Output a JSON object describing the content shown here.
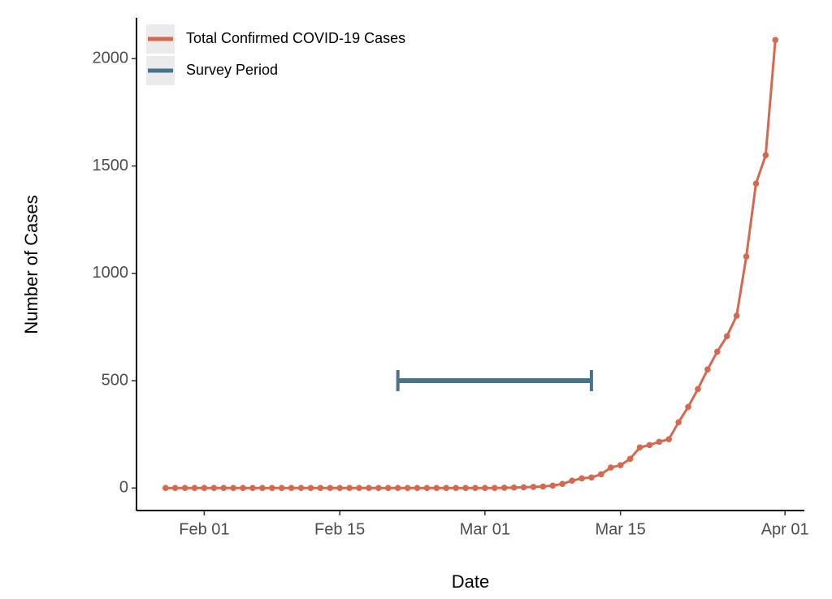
{
  "chart_data": {
    "type": "line",
    "x_label": "Date",
    "y_label": "Number of Cases",
    "xlim": [
      "01-25",
      "04-03"
    ],
    "xticks": [
      {
        "value": "02-01",
        "label": "Feb 01"
      },
      {
        "value": "02-15",
        "label": "Feb 15"
      },
      {
        "value": "03-01",
        "label": "Mar 01"
      },
      {
        "value": "03-15",
        "label": "Mar 15"
      },
      {
        "value": "04-01",
        "label": "Apr 01"
      }
    ],
    "ylim": [
      -105,
      2190
    ],
    "yticks": [
      0,
      500,
      1000,
      1500,
      2000
    ],
    "legend": "top-left",
    "series": [
      {
        "name": "Total Confirmed COVID-19 Cases",
        "color": "#d4694f",
        "type": "line",
        "x": [
          "01-28",
          "01-29",
          "01-30",
          "01-31",
          "02-01",
          "02-02",
          "02-03",
          "02-04",
          "02-05",
          "02-06",
          "02-07",
          "02-08",
          "02-09",
          "02-10",
          "02-11",
          "02-12",
          "02-13",
          "02-14",
          "02-15",
          "02-16",
          "02-17",
          "02-18",
          "02-19",
          "02-20",
          "02-21",
          "02-22",
          "02-23",
          "02-24",
          "02-25",
          "02-26",
          "02-27",
          "02-28",
          "02-29",
          "03-01",
          "03-02",
          "03-03",
          "03-04",
          "03-05",
          "03-06",
          "03-07",
          "03-08",
          "03-09",
          "03-10",
          "03-11",
          "03-12",
          "03-13",
          "03-14",
          "03-15",
          "03-16",
          "03-17",
          "03-18",
          "03-19",
          "03-20",
          "03-21",
          "03-22",
          "03-23",
          "03-24",
          "03-25",
          "03-26",
          "03-27",
          "03-28",
          "03-29",
          "03-30",
          "03-31"
        ],
        "values": [
          0,
          0,
          0,
          0,
          0,
          0,
          0,
          0,
          0,
          0,
          0,
          0,
          0,
          0,
          0,
          0,
          0,
          0,
          0,
          0,
          0,
          0,
          0,
          0,
          0,
          0,
          0,
          0,
          0,
          0,
          0,
          0,
          0,
          0,
          0,
          1,
          2,
          3,
          5,
          7,
          11,
          19,
          34,
          45,
          49,
          64,
          95,
          106,
          136,
          189,
          200,
          215,
          227,
          306,
          378,
          461,
          552,
          635,
          707,
          802,
          1078,
          1418,
          1550,
          2087
        ]
      },
      {
        "name": "Survey Period",
        "color": "#4a7289",
        "type": "interval",
        "x": [
          "02-21",
          "03-12"
        ],
        "values": [
          500,
          500
        ]
      }
    ]
  }
}
